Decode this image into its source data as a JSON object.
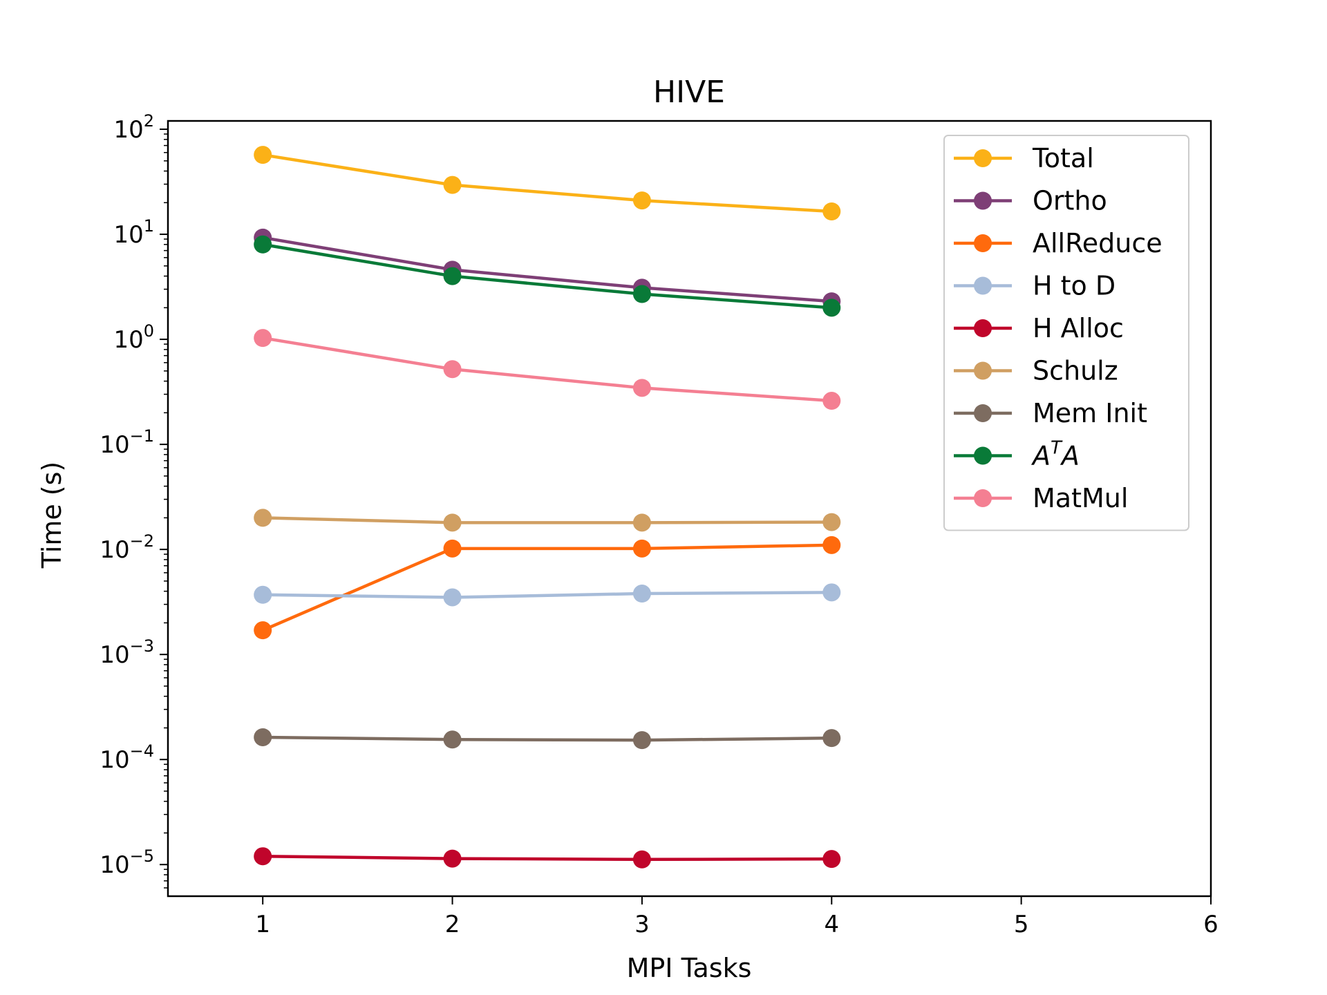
{
  "chart_data": {
    "type": "line",
    "title": "HIVE",
    "xlabel": "MPI Tasks",
    "ylabel": "Time (s)",
    "x_scale": "linear",
    "y_scale": "log",
    "xlim": [
      0.5,
      6
    ],
    "ylim": [
      5e-06,
      120
    ],
    "x_ticks": [
      1,
      2,
      3,
      4,
      5,
      6
    ],
    "x_tick_labels": [
      "1",
      "2",
      "3",
      "4",
      "5",
      "6"
    ],
    "y_ticks": [
      {
        "base": "10",
        "exp": "2",
        "value": 100
      },
      {
        "base": "10",
        "exp": "1",
        "value": 10
      },
      {
        "base": "10",
        "exp": "0",
        "value": 1
      },
      {
        "base": "10",
        "exp": "−1",
        "value": 0.1
      },
      {
        "base": "10",
        "exp": "−2",
        "value": 0.01
      },
      {
        "base": "10",
        "exp": "−3",
        "value": 0.001
      },
      {
        "base": "10",
        "exp": "−4",
        "value": 0.0001
      },
      {
        "base": "10",
        "exp": "−5",
        "value": 1e-05
      }
    ],
    "grid": false,
    "legend_position": "top-right",
    "x": [
      1,
      2,
      3,
      4
    ],
    "series": [
      {
        "name": "Total",
        "color": "#fbb117",
        "values": [
          57,
          29.5,
          21,
          16.5
        ]
      },
      {
        "name": "Ortho",
        "color": "#7e3f76",
        "values": [
          9.3,
          4.6,
          3.1,
          2.3
        ]
      },
      {
        "name": "AllReduce",
        "color": "#ff6a0d",
        "values": [
          0.0017,
          0.0102,
          0.0102,
          0.011
        ]
      },
      {
        "name": "H to D",
        "color": "#a7bcd9",
        "values": [
          0.0037,
          0.0035,
          0.0038,
          0.0039
        ]
      },
      {
        "name": "H Alloc",
        "color": "#c0052b",
        "values": [
          1.2e-05,
          1.14e-05,
          1.12e-05,
          1.13e-05
        ]
      },
      {
        "name": "Schulz",
        "color": "#d09f62",
        "values": [
          0.02,
          0.018,
          0.018,
          0.0182
        ]
      },
      {
        "name": "Mem Init",
        "color": "#7d6c60",
        "values": [
          0.000163,
          0.000155,
          0.000153,
          0.00016
        ]
      },
      {
        "name": "ATA",
        "legend_base": "A",
        "legend_sup": "T",
        "legend_tail": "A",
        "color": "#097a38",
        "values": [
          8.0,
          4.0,
          2.7,
          2.0
        ]
      },
      {
        "name": "MatMul",
        "color": "#f47f92",
        "values": [
          1.03,
          0.52,
          0.345,
          0.26
        ]
      }
    ]
  }
}
